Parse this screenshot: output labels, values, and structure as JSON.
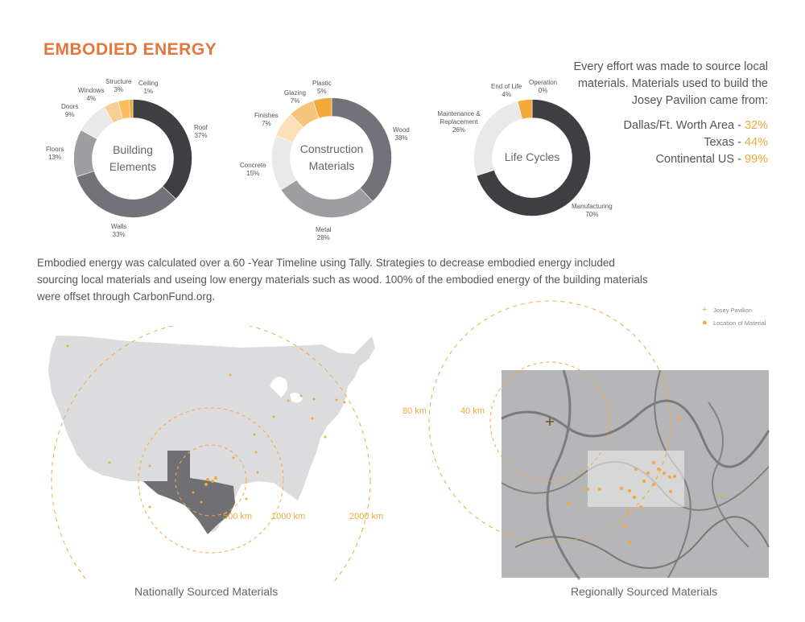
{
  "title": "EMBODIED ENERGY",
  "colors": {
    "accent_orange": "#e4763a",
    "accent_gold": "#f2a93b",
    "dark_gray": "#3f3f43",
    "mid_gray": "#737278",
    "light_gray": "#9e9ea2",
    "pale_gray": "#e9e9e9",
    "peach": "#f6cf95"
  },
  "chart_data": [
    {
      "type": "pie",
      "title": "Building Elements",
      "slices": [
        {
          "label": "Roof",
          "value": 37,
          "display": "37%",
          "color": "#3f3f43"
        },
        {
          "label": "Walls",
          "value": 33,
          "display": "33%",
          "color": "#737278"
        },
        {
          "label": "Floors",
          "value": 13,
          "display": "13%",
          "color": "#9e9ea2"
        },
        {
          "label": "Doors",
          "value": 9,
          "display": "9%",
          "color": "#e9e9e9"
        },
        {
          "label": "Windows",
          "value": 4,
          "display": "4%",
          "color": "#f6cf95"
        },
        {
          "label": "Structure",
          "value": 3,
          "display": "3%",
          "color": "#fbbd5e"
        },
        {
          "label": "Ceiling",
          "value": 1,
          "display": "1%",
          "color": "#f2a93b"
        }
      ]
    },
    {
      "type": "pie",
      "title": "Construction Materials",
      "slices": [
        {
          "label": "Wood",
          "value": 38,
          "display": "38%",
          "color": "#737278"
        },
        {
          "label": "Metal",
          "value": 28,
          "display": "28%",
          "color": "#9e9ea2"
        },
        {
          "label": "Concrete",
          "value": 15,
          "display": "15%",
          "color": "#e9e9e9"
        },
        {
          "label": "Finishes",
          "value": 7,
          "display": "7%",
          "color": "#fbe0b9"
        },
        {
          "label": "Glazing",
          "value": 7,
          "display": "7%",
          "color": "#f6c57d"
        },
        {
          "label": "Plastic",
          "value": 5,
          "display": "5%",
          "color": "#f2a93b"
        }
      ]
    },
    {
      "type": "pie",
      "title": "Life Cycles",
      "slices": [
        {
          "label": "Manufacturing",
          "value": 70,
          "display": "70%",
          "color": "#3f3f43"
        },
        {
          "label": "Maintenance & Replacement",
          "value": 26,
          "display": "26%",
          "color": "#e9e9e9"
        },
        {
          "label": "End of Life",
          "value": 4,
          "display": "4%",
          "color": "#f2a93b"
        },
        {
          "label": "Operation",
          "value": 0,
          "display": "0%",
          "color": "#f2a93b"
        }
      ]
    }
  ],
  "donuts": [
    {
      "center_line1": "Building",
      "center_line2": "Elements"
    },
    {
      "center_line1": "Construction",
      "center_line2": "Materials"
    },
    {
      "center_line1": "Life Cycles",
      "center_line2": ""
    }
  ],
  "sourcing": {
    "intro": "Every effort was made to source local materials. Materials used to build the Josey Pavilion came from:",
    "rows": [
      {
        "label": "Dallas/Ft. Worth Area - ",
        "pct": "32%"
      },
      {
        "label": "Texas - ",
        "pct": "44%"
      },
      {
        "label": "Continental US - ",
        "pct": "99%"
      }
    ]
  },
  "paragraph": "Embodied energy was calculated over a 60 -Year Timeline using Tally. Strategies to decrease embodied energy included sourcing local materials and useing low energy materials such as wood. 100% of the embodied energy of the building materials were offset through CarbonFund.org.",
  "legend": {
    "pavilion": "Josey Pavilion",
    "material": "Location of Material"
  },
  "national_map": {
    "caption": "Nationally Sourced Materials",
    "rings": [
      "500 km",
      "1000 km",
      "2000 km"
    ]
  },
  "regional_map": {
    "caption": "Regionally Sourced Materials",
    "rings": [
      "80 km",
      "40 km"
    ]
  }
}
